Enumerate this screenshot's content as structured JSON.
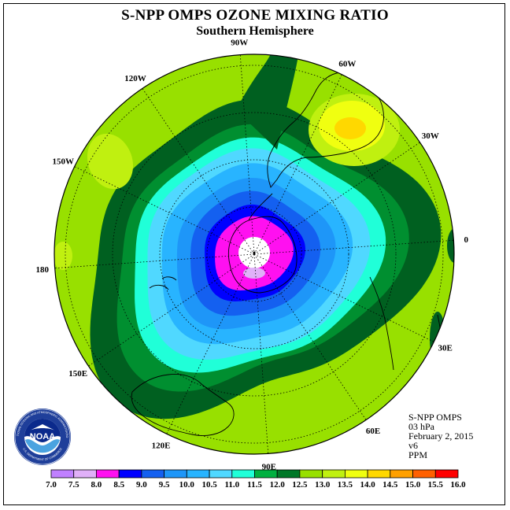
{
  "header": {
    "title": "S-NPP OMPS OZONE MIXING RATIO",
    "subtitle": "Southern Hemisphere"
  },
  "map": {
    "projection": "polar-stereographic-south",
    "longitude_labels": [
      "90W",
      "60W",
      "30W",
      "0",
      "30E",
      "60E",
      "90E",
      "120E",
      "150E",
      "180",
      "150W",
      "120W"
    ],
    "field_peak_value": 13.6,
    "field_min_value": 7.9
  },
  "info": {
    "instrument": "S-NPP OMPS",
    "level": "03 hPa",
    "date": "February 2, 2015",
    "version": "v6",
    "units": "PPM"
  },
  "logo": {
    "text": "NOAA",
    "ring_text": "NATIONAL OCEANIC AND ATMOSPHERIC ADMINISTRATION",
    "ring_text_bottom": "U.S. DEPARTMENT OF COMMERCE"
  },
  "colorbar": {
    "labels": [
      "7.0",
      "7.5",
      "8.0",
      "8.5",
      "9.0",
      "9.5",
      "10.0",
      "10.5",
      "11.0",
      "11.5",
      "12.0",
      "12.5",
      "13.0",
      "13.5",
      "14.0",
      "14.5",
      "15.0",
      "15.5",
      "16.0"
    ],
    "colors": [
      "#c080ff",
      "#e0b0f8",
      "#ff10f0",
      "#0000ff",
      "#1460f0",
      "#1e96f8",
      "#28b4ff",
      "#50d8ff",
      "#20ffd8",
      "#00b040",
      "#007828",
      "#006020",
      "#98e000",
      "#c0f010",
      "#f0ff10",
      "#ffd800",
      "#ffa000",
      "#ff6000",
      "#ff0000",
      "#e00000",
      "#8b5a2b"
    ]
  }
}
